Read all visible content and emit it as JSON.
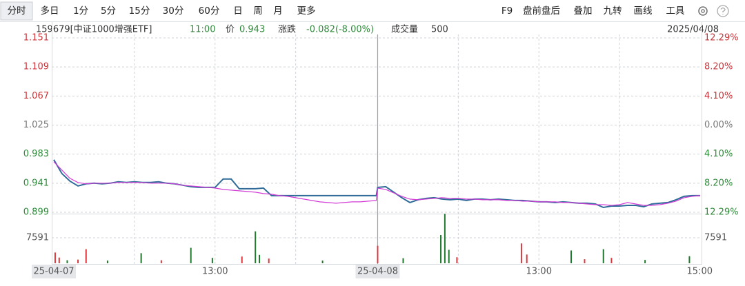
{
  "toolbar": {
    "periods": [
      "分时",
      "多日",
      "1分",
      "5分",
      "15分",
      "30分",
      "60分",
      "日",
      "周",
      "月",
      "更多"
    ],
    "tools": [
      "F9",
      "盘前盘后",
      "叠加",
      "九转",
      "画线",
      "工具"
    ]
  },
  "info": {
    "code": "159679[中证1000增强ETF]",
    "time": "11:00",
    "price_label": "价",
    "price": 0.943,
    "change_label": "涨跌",
    "change": "-0.082(-8.00%)",
    "volume_label": "成交量",
    "volume": 500,
    "date": "2025/04/08"
  },
  "chart_data": [
    {
      "type": "line",
      "x": [
        0,
        6,
        12,
        18,
        24,
        30,
        36,
        42,
        48,
        54,
        60,
        66,
        72,
        78,
        84,
        90,
        96,
        102,
        108,
        114,
        120,
        126,
        132,
        138,
        144,
        150,
        156,
        162,
        168,
        174,
        180,
        186,
        192,
        198,
        204,
        210,
        216,
        222,
        228,
        234,
        240,
        241,
        247,
        253,
        259,
        265,
        271,
        277,
        283,
        289,
        295,
        301,
        307,
        313,
        319,
        325,
        331,
        337,
        343,
        349,
        355,
        361,
        367,
        373,
        379,
        385,
        391,
        397,
        403,
        409,
        415,
        421,
        427,
        433,
        439,
        445,
        451,
        457,
        463,
        469,
        475,
        481
      ],
      "series": [
        {
          "color": "#2f6c99",
          "values": [
            0.975,
            0.955,
            0.944,
            0.937,
            0.94,
            0.941,
            0.94,
            0.941,
            0.943,
            0.942,
            0.943,
            0.942,
            0.942,
            0.943,
            0.941,
            0.94,
            0.938,
            0.936,
            0.935,
            0.935,
            0.935,
            0.947,
            0.947,
            0.933,
            0.933,
            0.933,
            0.934,
            0.923,
            0.923,
            0.923,
            0.923,
            0.923,
            0.923,
            0.923,
            0.923,
            0.923,
            0.923,
            0.923,
            0.923,
            0.923,
            0.923,
            0.935,
            0.936,
            0.928,
            0.92,
            0.913,
            0.917,
            0.919,
            0.92,
            0.918,
            0.917,
            0.918,
            0.916,
            0.918,
            0.918,
            0.917,
            0.918,
            0.917,
            0.916,
            0.916,
            0.915,
            0.914,
            0.914,
            0.913,
            0.914,
            0.913,
            0.912,
            0.912,
            0.911,
            0.906,
            0.908,
            0.908,
            0.909,
            0.909,
            0.907,
            0.911,
            0.912,
            0.913,
            0.917,
            0.922,
            0.923,
            0.923
          ]
        },
        {
          "color": "#d23bd6",
          "values": [
            0.972,
            0.96,
            0.948,
            0.942,
            0.94,
            0.941,
            0.941,
            0.941,
            0.942,
            0.942,
            0.942,
            0.942,
            0.941,
            0.941,
            0.941,
            0.94,
            0.938,
            0.937,
            0.936,
            0.935,
            0.934,
            0.932,
            0.931,
            0.93,
            0.929,
            0.928,
            0.926,
            0.925,
            0.923,
            0.922,
            0.92,
            0.918,
            0.916,
            0.914,
            0.913,
            0.912,
            0.913,
            0.914,
            0.914,
            0.915,
            0.916,
            0.934,
            0.932,
            0.927,
            0.922,
            0.918,
            0.917,
            0.918,
            0.919,
            0.92,
            0.919,
            0.919,
            0.918,
            0.918,
            0.917,
            0.917,
            0.917,
            0.916,
            0.916,
            0.915,
            0.915,
            0.914,
            0.914,
            0.914,
            0.913,
            0.913,
            0.912,
            0.911,
            0.91,
            0.91,
            0.909,
            0.91,
            0.913,
            0.911,
            0.909,
            0.909,
            0.91,
            0.912,
            0.915,
            0.92,
            0.922,
            0.923
          ]
        }
      ],
      "xlim": [
        0,
        481
      ],
      "xticks": [
        {
          "value": 0,
          "label": "25-04-07"
        },
        {
          "value": 120,
          "label": "13:00"
        },
        {
          "value": 241,
          "label": "25-04-08"
        },
        {
          "value": 361,
          "label": "13:00"
        },
        {
          "value": 481,
          "label": "15:00"
        }
      ],
      "xgrid": [
        60,
        120,
        180,
        301,
        361,
        421
      ],
      "x_separator": 241,
      "ylim": [
        0.899,
        1.151
      ],
      "yticks": [
        1.151,
        1.109,
        1.067,
        1.025,
        0.983,
        0.941,
        0.899
      ],
      "y2lim": [
        -12.29,
        12.29
      ],
      "y2ticks": [
        {
          "value": 12.29,
          "label": "12.29%"
        },
        {
          "value": 8.2,
          "label": "8.20%"
        },
        {
          "value": 4.1,
          "label": "4.10%"
        },
        {
          "value": 0,
          "label": "0.00%"
        },
        {
          "value": -4.1,
          "label": "4.10%"
        },
        {
          "value": -8.2,
          "label": "8.20%"
        },
        {
          "value": -12.29,
          "label": "12.29%"
        }
      ],
      "tick_colors": [
        "#c8343a",
        "#c8343a",
        "#c8343a",
        "#777777",
        "#2e8b3a",
        "#2e8b3a",
        "#2e8b3a"
      ],
      "grid": true
    },
    {
      "type": "bar",
      "x": [
        1,
        4,
        10,
        18,
        24,
        40,
        65,
        80,
        102,
        118,
        140,
        150,
        153,
        160,
        200,
        241,
        260,
        288,
        291,
        294,
        300,
        348,
        352,
        385,
        395,
        409,
        415,
        440,
        473
      ],
      "values": [
        3200,
        1700,
        900,
        1100,
        4200,
        800,
        3000,
        900,
        4600,
        1600,
        2000,
        9500,
        2500,
        1400,
        800,
        5200,
        1500,
        8400,
        14700,
        4000,
        1800,
        5900,
        2600,
        3800,
        1200,
        4200,
        1600,
        1000,
        2100
      ],
      "colors": [
        "#d9383e",
        "#d9383e",
        "#1f7a2e",
        "#d9383e",
        "#d9383e",
        "#1f7a2e",
        "#1f7a2e",
        "#d9383e",
        "#1f7a2e",
        "#1f7a2e",
        "#d9383e",
        "#1f7a2e",
        "#1f7a2e",
        "#d9383e",
        "#1f7a2e",
        "#d9383e",
        "#1f7a2e",
        "#1f7a2e",
        "#1f7a2e",
        "#1f7a2e",
        "#d9383e",
        "#d9383e",
        "#d9383e",
        "#1f7a2e",
        "#d9383e",
        "#1f7a2e",
        "#d9383e",
        "#1f7a2e",
        "#1f7a2e"
      ],
      "xlim": [
        0,
        481
      ],
      "ylim": [
        0,
        14760
      ],
      "yticks": [
        7591
      ],
      "grid": true
    }
  ]
}
